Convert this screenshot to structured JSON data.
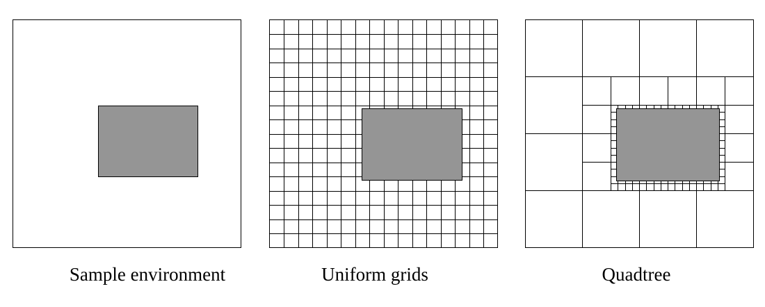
{
  "panels": [
    {
      "caption": "Sample environment"
    },
    {
      "caption": "Uniform grids"
    },
    {
      "caption": "Quadtree"
    }
  ],
  "colors": {
    "obstacle_fill": "#959595",
    "line": "#000000",
    "background": "#ffffff"
  },
  "uniform_grid": {
    "cells_per_side": 16
  },
  "quadtree": {
    "max_depth": 5
  }
}
